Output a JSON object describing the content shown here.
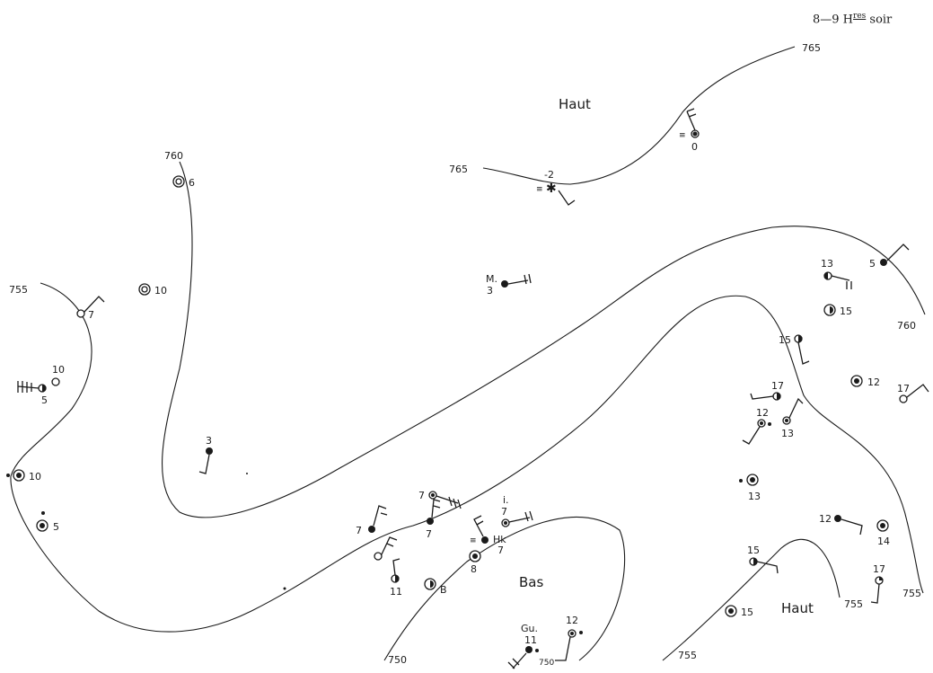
{
  "header": {
    "time_range": "8—9 H",
    "superscript": "res",
    "period": "soir"
  },
  "regions": {
    "high_north": "Haut",
    "low_center": "Bas",
    "high_south": "Haut"
  },
  "isobars": {
    "i765_left": "765",
    "i765_right": "765",
    "i760_top": "760",
    "i760_right": "760",
    "i755_left": "755",
    "i755_right_a": "755",
    "i755_right_b": "755",
    "i755_bottom": "755",
    "i750_bottom": "750",
    "i750_small": "750"
  },
  "stations": {
    "s_minus2": "-2",
    "s_0": "0",
    "s_6": "6",
    "s_10_north": "10",
    "s_7_west": "7",
    "s_10_west": "10",
    "s_5_west": "5",
    "s_10_coast": "10",
    "s_5_coast": "5",
    "s_3_center": "3",
    "s_M": "M.",
    "s_M_val": "3",
    "s_13_ne": "13",
    "s_5_ne": "5",
    "s_15_ne": "15",
    "s_15_e": "15",
    "s_12_e": "12",
    "s_17_e": "17",
    "s_17_mid": "17",
    "s_12_mid": "12",
    "s_13_mid": "13",
    "s_13_low": "13",
    "s_12_low": "12",
    "s_14_low": "14",
    "s_7_a": "7",
    "s_7_b": "7",
    "s_7_c": "7",
    "s_i": "i.",
    "s_i_val": "7",
    "s_Hk": "Hk",
    "s_Hk_val": "7",
    "s_8": "8",
    "s_11": "11",
    "s_B": "B",
    "s_15_bottom": "15",
    "s_17_bottom": "17",
    "s_15_sw": "15",
    "s_Gu": "Gu.",
    "s_Gu_val": "11",
    "s_12_bottom": "12"
  }
}
